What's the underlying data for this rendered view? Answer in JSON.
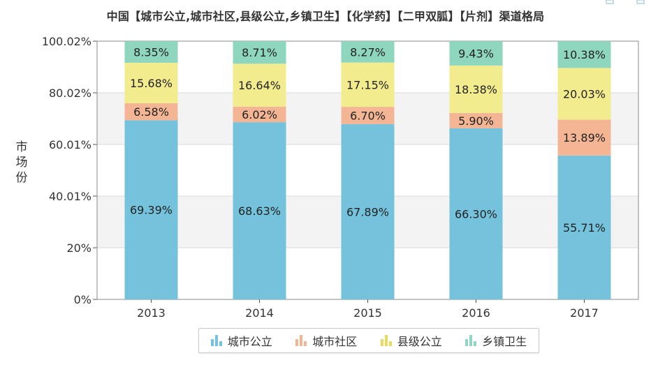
{
  "chart_data": {
    "type": "bar",
    "stacked": true,
    "title": "中国【城市公立,城市社区,县级公立,乡镇卫生】【化学药】【二甲双胍】【片剂】渠道格局",
    "ylabel": "市场份",
    "xlabel": "",
    "categories": [
      "2013",
      "2014",
      "2015",
      "2016",
      "2017"
    ],
    "ylim": [
      0,
      100.02
    ],
    "yticks": [
      "0%",
      "20%",
      "40.01%",
      "60.01%",
      "80.02%",
      "100.02%"
    ],
    "ytick_values": [
      0,
      20,
      40.01,
      60.01,
      80.02,
      100.02
    ],
    "grid": true,
    "legend_position": "bottom",
    "series": [
      {
        "name": "城市公立",
        "color": "#74c2db",
        "values": [
          69.39,
          68.63,
          67.89,
          66.3,
          55.71
        ],
        "labels": [
          "69.39%",
          "68.63%",
          "67.89%",
          "66.30%",
          "55.71%"
        ]
      },
      {
        "name": "城市社区",
        "color": "#f4b594",
        "values": [
          6.58,
          6.02,
          6.7,
          5.9,
          13.89
        ],
        "labels": [
          "6.58%",
          "6.02%",
          "6.70%",
          "5.90%",
          "13.89%"
        ]
      },
      {
        "name": "县级公立",
        "color": "#f3ec8e",
        "values": [
          15.68,
          16.64,
          17.15,
          18.38,
          20.03
        ],
        "labels": [
          "15.68%",
          "16.64%",
          "17.15%",
          "18.38%",
          "20.03%"
        ]
      },
      {
        "name": "乡镇卫生",
        "color": "#8fd6bf",
        "values": [
          8.35,
          8.71,
          8.27,
          9.43,
          10.38
        ],
        "labels": [
          "8.35%",
          "8.71%",
          "8.27%",
          "9.43%",
          "10.38%"
        ]
      }
    ]
  },
  "ylabel_chars": [
    "市",
    "场",
    "份"
  ],
  "colors": {
    "axis": "#555555",
    "grid": "#d9d9d9",
    "band": "#f3f3f3",
    "text": "#333333"
  }
}
